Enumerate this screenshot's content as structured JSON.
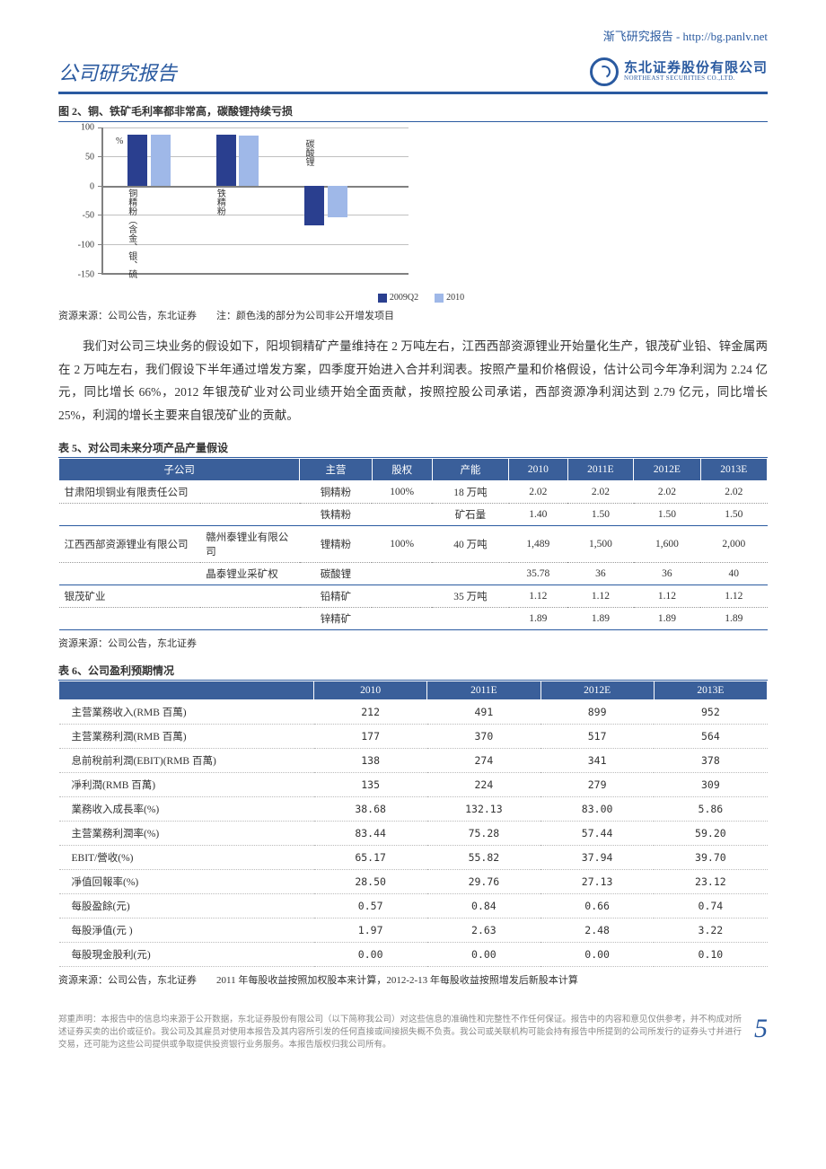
{
  "top_link": "渐飞研究报告 - http://bg.panlv.net",
  "header": {
    "title": "公司研究报告",
    "logo_cn": "东北证券股份有限公司",
    "logo_en": "NORTHEAST SECURITIES CO.,LTD."
  },
  "figure2": {
    "title": "图 2、铜、铁矿毛利率都非常高，碳酸锂持续亏损",
    "type": "bar",
    "ylim": [
      -150,
      100
    ],
    "ytick_step": 50,
    "yticks": [
      -150,
      -100,
      -50,
      0,
      50,
      100
    ],
    "pct_symbol": "%",
    "categories": [
      "铜精粉（含金、银、硫",
      "铁精粉",
      "碳酸锂"
    ],
    "series": [
      {
        "name": "2009Q2",
        "color": "#2a3f8f",
        "values": [
          88,
          88,
          -68
        ]
      },
      {
        "name": "2010",
        "color": "#9fb8e8",
        "values": [
          87,
          86,
          -55
        ]
      }
    ],
    "grid_color": "#c0c0c0",
    "source": "资源来源：公司公告，东北证券　　注：颜色浅的部分为公司非公开增发项目"
  },
  "paragraph": "我们对公司三块业务的假设如下，阳坝铜精矿产量维持在 2 万吨左右，江西西部资源锂业开始量化生产，银茂矿业铅、锌金属两在 2 万吨左右，我们假设下半年通过增发方案，四季度开始进入合并利润表。按照产量和价格假设，估计公司今年净利润为 2.24 亿元，同比增长 66%，2012 年银茂矿业对公司业绩开始全面贡献，按照控股公司承诺，西部资源净利润达到 2.79 亿元，同比增长 25%，利润的增长主要来自银茂矿业的贡献。",
  "table5": {
    "title": "表 5、对公司未来分项产品产量假设",
    "columns": [
      "子公司",
      "",
      "主营",
      "股权",
      "产能",
      "2010",
      "2011E",
      "2012E",
      "2013E"
    ],
    "rows": [
      [
        "甘肃阳坝铜业有限责任公司",
        "",
        "铜精粉",
        "100%",
        "18 万吨",
        "2.02",
        "2.02",
        "2.02",
        "2.02"
      ],
      [
        "",
        "",
        "铁精粉",
        "",
        "矿石量",
        "1.40",
        "1.50",
        "1.50",
        "1.50"
      ],
      [
        "江西西部资源锂业有限公司",
        "赣州泰锂业有限公司",
        "锂精粉",
        "100%",
        "40 万吨",
        "1,489",
        "1,500",
        "1,600",
        "2,000"
      ],
      [
        "",
        "晶泰锂业采矿权",
        "碳酸锂",
        "",
        "",
        "35.78",
        "36",
        "36",
        "40"
      ],
      [
        "银茂矿业",
        "",
        "铅精矿",
        "",
        "35 万吨",
        "1.12",
        "1.12",
        "1.12",
        "1.12"
      ],
      [
        "",
        "",
        "锌精矿",
        "",
        "",
        "1.89",
        "1.89",
        "1.89",
        "1.89"
      ]
    ],
    "source": "资源来源：公司公告，东北证券"
  },
  "table6": {
    "title": "表 6、公司盈利预期情况",
    "columns": [
      "",
      "2010",
      "2011E",
      "2012E",
      "2013E"
    ],
    "rows": [
      [
        "主营業務收入(RMB 百萬)",
        "212",
        "491",
        "899",
        "952"
      ],
      [
        "主营業務利潤(RMB 百萬)",
        "177",
        "370",
        "517",
        "564"
      ],
      [
        "息前稅前利潤(EBIT)(RMB 百萬)",
        "138",
        "274",
        "341",
        "378"
      ],
      [
        "凈利潤(RMB 百萬)",
        "135",
        "224",
        "279",
        "309"
      ],
      [
        "業務收入成長率(%)",
        "38.68",
        "132.13",
        "83.00",
        "5.86"
      ],
      [
        "主营業務利潤率(%)",
        "83.44",
        "75.28",
        "57.44",
        "59.20"
      ],
      [
        "EBIT/營收(%)",
        "65.17",
        "55.82",
        "37.94",
        "39.70"
      ],
      [
        "凈值回報率(%)",
        "28.50",
        "29.76",
        "27.13",
        "23.12"
      ],
      [
        "每股盈餘(元)",
        "0.57",
        "0.84",
        "0.66",
        "0.74"
      ],
      [
        "每股淨值(元 )",
        "1.97",
        "2.63",
        "2.48",
        "3.22"
      ],
      [
        "每股現金股利(元)",
        "0.00",
        "0.00",
        "0.00",
        "0.10"
      ]
    ],
    "source": "资源来源：公司公告，东北证券　　2011 年每股收益按照加权股本来计算，2012-2-13 年每股收益按照增发后新股本计算"
  },
  "footer": {
    "disclaimer": "郑重声明：本报告中的信息均来源于公开数据，东北证券股份有限公司（以下简称我公司）对这些信息的准确性和完整性不作任何保证。报告中的内容和意见仅供参考，并不构成对所述证券买卖的出价或征价。我公司及其雇员对使用本报告及其内容所引发的任何直接或间接损失概不负责。我公司或关联机构可能会持有报告中所提到的公司所发行的证券头寸并进行交易，还可能为这些公司提供或争取提供投资银行业务服务。本报告版权归我公司所有。",
    "page": "5"
  }
}
